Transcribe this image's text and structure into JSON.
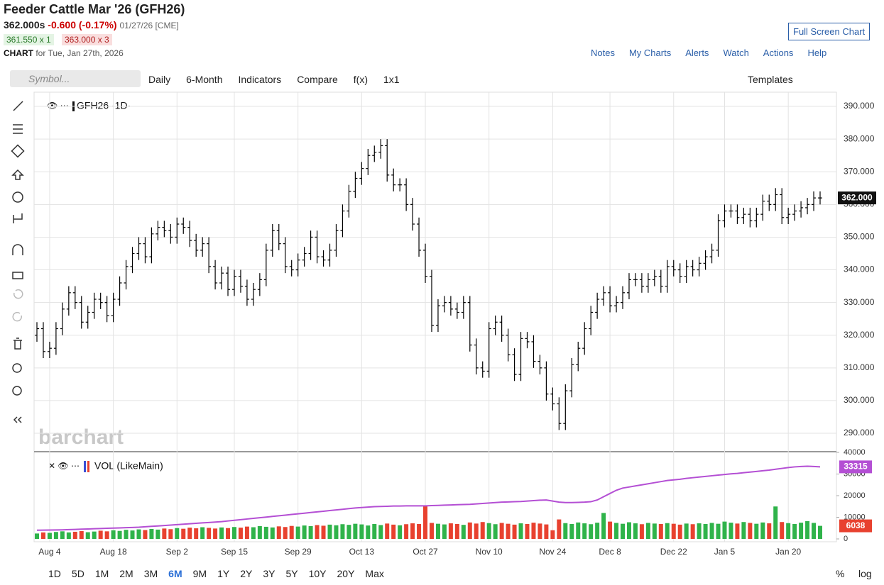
{
  "header": {
    "title": "Feeder Cattle Mar '26 (GFH26)",
    "price": "362.000s",
    "change": "-0.600 (-0.17%)",
    "date": "01/27/26 [CME]",
    "bid": "361.550 x 1",
    "ask": "363.000 x 3",
    "chart_label": "CHART",
    "chart_date": "for Tue, Jan 27th, 2026",
    "full_screen": "Full Screen Chart"
  },
  "nav": [
    "Notes",
    "My Charts",
    "Alerts",
    "Watch",
    "Actions",
    "Help"
  ],
  "toolbar": {
    "symbol": "Symbol...",
    "items": [
      "Daily",
      "6-Month",
      "Indicators",
      "Compare",
      "f(x)",
      "1x1"
    ],
    "templates": "Templates"
  },
  "ranges": [
    "1D",
    "5D",
    "1M",
    "2M",
    "3M",
    "6M",
    "9M",
    "1Y",
    "2Y",
    "3Y",
    "5Y",
    "10Y",
    "20Y",
    "Max"
  ],
  "scale_buttons": [
    "%",
    "log"
  ],
  "watermark": "barchart",
  "chart_data": [
    {
      "type": "ohlc",
      "label": "GFH26 ·1D·",
      "color": "#000000",
      "categories": [
        null,
        null,
        "Aug 4",
        null,
        null,
        null,
        null,
        null,
        null,
        null,
        null,
        null,
        "Aug 18",
        null,
        null,
        null,
        null,
        null,
        null,
        null,
        null,
        null,
        "Sep 2",
        null,
        null,
        null,
        null,
        null,
        null,
        null,
        null,
        "Sep 15",
        null,
        null,
        null,
        null,
        null,
        null,
        null,
        null,
        null,
        "Sep 29",
        null,
        null,
        null,
        null,
        null,
        null,
        null,
        null,
        null,
        "Oct 13",
        null,
        null,
        null,
        null,
        null,
        null,
        null,
        null,
        null,
        "Oct 27",
        null,
        null,
        null,
        null,
        null,
        null,
        null,
        null,
        null,
        "Nov 10",
        null,
        null,
        null,
        null,
        null,
        null,
        null,
        null,
        null,
        "Nov 24",
        null,
        null,
        null,
        null,
        null,
        null,
        null,
        null,
        "Dec 8",
        null,
        null,
        null,
        null,
        null,
        null,
        null,
        null,
        null,
        "Dec 22",
        null,
        null,
        null,
        null,
        null,
        null,
        null,
        "Jan 5",
        null,
        null,
        null,
        null,
        null,
        null,
        null,
        null,
        null,
        "Jan 20",
        null,
        null,
        null,
        null,
        null
      ],
      "open": [
        320,
        322,
        315,
        316,
        322,
        328,
        333,
        330,
        324,
        327,
        331,
        330,
        326,
        331,
        336,
        341,
        345,
        348,
        344,
        351,
        353,
        352,
        350,
        354,
        353,
        349,
        346,
        348,
        341,
        336,
        339,
        334,
        338,
        335,
        331,
        334,
        337,
        346,
        352,
        348,
        341,
        340,
        343,
        345,
        350,
        344,
        343,
        346,
        352,
        358,
        364,
        368,
        371,
        375,
        376,
        378,
        369,
        366,
        366,
        360,
        354,
        346,
        338,
        323,
        329,
        330,
        328,
        327,
        330,
        317,
        310,
        309,
        322,
        324,
        320,
        314,
        308,
        319,
        318,
        312,
        310,
        302,
        299,
        293,
        303,
        311,
        316,
        322,
        327,
        331,
        333,
        329,
        330,
        333,
        337,
        337,
        335,
        337,
        338,
        335,
        341,
        340,
        338,
        341,
        340,
        342,
        344,
        346,
        355,
        358,
        358,
        356,
        357,
        355,
        357,
        361,
        360,
        363,
        356,
        357,
        358,
        359,
        360,
        362
      ],
      "high": [
        324,
        324,
        318,
        324,
        330,
        335,
        335,
        332,
        329,
        333,
        333,
        332,
        333,
        338,
        343,
        347,
        350,
        350,
        353,
        355,
        355,
        354,
        356,
        356,
        355,
        351,
        350,
        350,
        343,
        341,
        341,
        340,
        340,
        337,
        336,
        339,
        348,
        354,
        354,
        350,
        343,
        345,
        347,
        352,
        352,
        346,
        348,
        354,
        360,
        366,
        370,
        373,
        377,
        378,
        380,
        380,
        371,
        368,
        368,
        362,
        356,
        348,
        340,
        331,
        332,
        332,
        330,
        332,
        332,
        319,
        312,
        324,
        326,
        326,
        322,
        316,
        321,
        321,
        320,
        314,
        312,
        304,
        301,
        305,
        313,
        318,
        324,
        329,
        333,
        335,
        335,
        332,
        335,
        339,
        339,
        339,
        339,
        340,
        340,
        343,
        343,
        342,
        343,
        343,
        344,
        346,
        348,
        357,
        360,
        360,
        360,
        359,
        359,
        359,
        363,
        363,
        365,
        365,
        359,
        360,
        361,
        362,
        364,
        364
      ],
      "low": [
        318,
        313,
        313,
        314,
        320,
        326,
        328,
        322,
        322,
        325,
        328,
        324,
        324,
        329,
        334,
        339,
        343,
        342,
        342,
        349,
        350,
        348,
        348,
        351,
        347,
        344,
        344,
        339,
        334,
        334,
        332,
        332,
        333,
        329,
        329,
        332,
        335,
        344,
        346,
        339,
        338,
        338,
        341,
        343,
        342,
        341,
        341,
        344,
        350,
        356,
        362,
        366,
        369,
        373,
        374,
        367,
        364,
        364,
        358,
        352,
        344,
        336,
        321,
        321,
        327,
        326,
        325,
        325,
        315,
        308,
        307,
        307,
        320,
        318,
        312,
        306,
        306,
        316,
        310,
        308,
        300,
        297,
        291,
        291,
        301,
        309,
        314,
        320,
        325,
        329,
        327,
        327,
        328,
        331,
        335,
        333,
        333,
        335,
        333,
        333,
        338,
        336,
        336,
        338,
        338,
        340,
        342,
        344,
        353,
        356,
        354,
        354,
        353,
        353,
        355,
        358,
        358,
        354,
        354,
        355,
        356,
        357,
        358,
        360
      ],
      "close": [
        322,
        315,
        316,
        322,
        328,
        333,
        330,
        324,
        327,
        331,
        330,
        326,
        331,
        336,
        341,
        345,
        348,
        344,
        351,
        353,
        352,
        350,
        354,
        353,
        349,
        346,
        348,
        341,
        336,
        339,
        334,
        338,
        335,
        331,
        334,
        337,
        346,
        352,
        348,
        341,
        340,
        343,
        345,
        350,
        344,
        343,
        346,
        352,
        358,
        364,
        368,
        371,
        375,
        376,
        378,
        369,
        366,
        366,
        360,
        354,
        346,
        338,
        323,
        329,
        330,
        328,
        327,
        330,
        317,
        310,
        309,
        322,
        324,
        320,
        314,
        308,
        319,
        318,
        312,
        310,
        302,
        299,
        293,
        303,
        311,
        316,
        322,
        327,
        331,
        333,
        329,
        330,
        333,
        337,
        337,
        335,
        337,
        338,
        335,
        341,
        340,
        338,
        341,
        340,
        342,
        344,
        346,
        355,
        358,
        358,
        356,
        357,
        355,
        357,
        361,
        360,
        363,
        356,
        357,
        358,
        359,
        360,
        362,
        362
      ],
      "last_value_label": "362.000",
      "ylim": [
        284.8,
        393.7
      ],
      "yticks": [
        {
          "value": 290,
          "label": "290.000"
        },
        {
          "value": 300,
          "label": "300.000"
        },
        {
          "value": 310,
          "label": "310.000"
        },
        {
          "value": 320,
          "label": "320.000"
        },
        {
          "value": 330,
          "label": "330.000"
        },
        {
          "value": 340,
          "label": "340.000"
        },
        {
          "value": 350,
          "label": "350.000"
        },
        {
          "value": 360,
          "label": "360.000"
        },
        {
          "value": 370,
          "label": "370.000"
        },
        {
          "value": 380,
          "label": "380.000"
        },
        {
          "value": 390,
          "label": "390.000"
        }
      ],
      "grid": true
    },
    {
      "type": "bar",
      "label": "VOL (LikeMain)",
      "up_color": "#2fb34a",
      "down_color": "#e8412f",
      "avg_color": "#b44fd4",
      "values": [
        2500,
        3000,
        2800,
        3200,
        3500,
        3000,
        3300,
        3600,
        3100,
        3400,
        3800,
        3500,
        4000,
        3700,
        4200,
        3900,
        4400,
        4100,
        4600,
        4300,
        4800,
        4500,
        5000,
        4700,
        5200,
        4900,
        5400,
        5100,
        4800,
        5300,
        5000,
        5500,
        5200,
        5700,
        5400,
        5900,
        5600,
        5300,
        5800,
        5500,
        6000,
        5700,
        6200,
        5900,
        6400,
        6100,
        6600,
        6300,
        6800,
        6500,
        7000,
        6700,
        6200,
        6900,
        6400,
        7100,
        6600,
        6300,
        6800,
        7200,
        6900,
        15500,
        7400,
        7000,
        6700,
        7200,
        6900,
        6500,
        7600,
        7100,
        7800,
        7300,
        6800,
        7400,
        7000,
        6600,
        7200,
        6900,
        7500,
        7100,
        6700,
        4000,
        9000,
        7300,
        6900,
        7600,
        7200,
        6800,
        7500,
        12000,
        8000,
        7400,
        7000,
        7700,
        7200,
        6800,
        7400,
        7100,
        6900,
        7300,
        7000,
        6600,
        7100,
        6800,
        7200,
        6900,
        7400,
        7000,
        8000,
        7500,
        7100,
        7800,
        7400,
        7000,
        7600,
        7200,
        15000,
        7800,
        7300,
        6900,
        7500,
        8200,
        7400,
        6038
      ],
      "average": [
        4000,
        4050,
        4100,
        4150,
        4200,
        4300,
        4400,
        4500,
        4600,
        4700,
        4800,
        4900,
        5000,
        5100,
        5200,
        5300,
        5400,
        5600,
        5800,
        6000,
        6200,
        6400,
        6600,
        6800,
        7000,
        7200,
        7400,
        7600,
        7800,
        8000,
        8300,
        8600,
        8900,
        9200,
        9500,
        9800,
        10100,
        10400,
        10700,
        11000,
        11300,
        11600,
        11900,
        12200,
        12500,
        12800,
        13100,
        13400,
        13700,
        14000,
        14300,
        14500,
        14700,
        14900,
        15000,
        15100,
        15200,
        15200,
        15300,
        15300,
        15300,
        15300,
        15400,
        15500,
        15600,
        15700,
        15800,
        15900,
        16000,
        16200,
        16400,
        16600,
        16800,
        17000,
        17100,
        17200,
        17300,
        17500,
        17700,
        17900,
        18000,
        17500,
        17000,
        16800,
        16800,
        16900,
        17000,
        17200,
        18000,
        19500,
        21000,
        22500,
        23500,
        24000,
        24500,
        25000,
        25500,
        26000,
        26500,
        27000,
        27300,
        27600,
        28000,
        28300,
        28600,
        28900,
        29200,
        29500,
        29800,
        30100,
        30300,
        30600,
        30900,
        31200,
        31500,
        31800,
        32200,
        32600,
        33000,
        33300,
        33500,
        33600,
        33500,
        33315
      ],
      "ylim": [
        0,
        40000
      ],
      "yticks": [
        0,
        10000,
        20000,
        30000,
        40000
      ]
    }
  ]
}
